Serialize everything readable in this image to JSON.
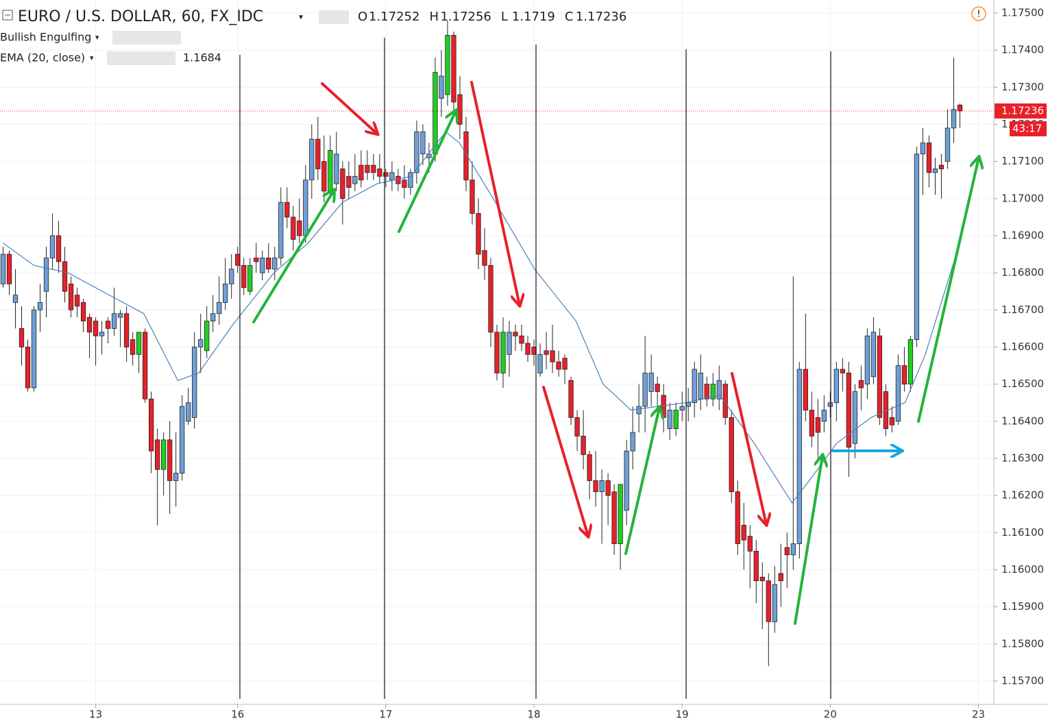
{
  "chart_data": {
    "type": "candlestick",
    "title": "EURO / U.S. DOLLAR, 60, FX_IDC",
    "ohlc": [
      {
        "label": "O",
        "value": 1.17252
      },
      {
        "label": "H",
        "value": 1.17256
      },
      {
        "label": "L",
        "value": 1.1719
      },
      {
        "label": "C",
        "value": 1.17236
      }
    ],
    "indicators": [
      {
        "name": "Bullish Engulfing"
      },
      {
        "name": "EMA (20, close)",
        "value": 1.1684
      }
    ],
    "countdown": "43:17",
    "up_color": "#6f9fd8",
    "down_color": "#e8202a",
    "pattern_color": "#1fd01f",
    "ema_color": "#4a80b8",
    "xlim": [
      -0.5,
      160.5
    ],
    "ylim": [
      1.15639,
      1.17535
    ],
    "xticks": [
      {
        "value": 15,
        "label": "13"
      },
      {
        "value": 38,
        "label": "16"
      },
      {
        "value": 62,
        "label": "17"
      },
      {
        "value": 86,
        "label": "18"
      },
      {
        "value": 110,
        "label": "19"
      },
      {
        "value": 134,
        "label": "20"
      },
      {
        "value": 158,
        "label": "23"
      }
    ],
    "yticks": [
      {
        "value": 1.175,
        "label": "1.17500"
      },
      {
        "value": 1.174,
        "label": "1.17400"
      },
      {
        "value": 1.173,
        "label": "1.17300"
      },
      {
        "value": 1.172,
        "label": "1.17200"
      },
      {
        "value": 1.171,
        "label": "1.17100"
      },
      {
        "value": 1.17,
        "label": "1.17000"
      },
      {
        "value": 1.169,
        "label": "1.16900"
      },
      {
        "value": 1.168,
        "label": "1.16800"
      },
      {
        "value": 1.167,
        "label": "1.16700"
      },
      {
        "value": 1.166,
        "label": "1.16600"
      },
      {
        "value": 1.165,
        "label": "1.16500"
      },
      {
        "value": 1.164,
        "label": "1.16400"
      },
      {
        "value": 1.163,
        "label": "1.16300"
      },
      {
        "value": 1.162,
        "label": "1.16200"
      },
      {
        "value": 1.161,
        "label": "1.16100"
      },
      {
        "value": 1.16,
        "label": "1.16000"
      },
      {
        "value": 1.159,
        "label": "1.15900"
      },
      {
        "value": 1.158,
        "label": "1.15800"
      },
      {
        "value": 1.157,
        "label": "1.15700"
      }
    ],
    "bullish_engulfing": [
      22,
      26,
      33,
      40,
      53,
      70,
      72,
      81,
      100,
      109,
      115,
      147
    ],
    "candles": [
      [
        1.1677,
        1.1687,
        1.1676,
        1.1685
      ],
      [
        1.1685,
        1.1686,
        1.1674,
        1.1677
      ],
      [
        1.1672,
        1.1681,
        1.1665,
        1.1674
      ],
      [
        1.1665,
        1.1671,
        1.1655,
        1.166
      ],
      [
        1.166,
        1.1662,
        1.1648,
        1.1649
      ],
      [
        1.1649,
        1.1671,
        1.1648,
        1.167
      ],
      [
        1.167,
        1.1677,
        1.1664,
        1.1672
      ],
      [
        1.1675,
        1.1687,
        1.1668,
        1.1684
      ],
      [
        1.1684,
        1.1696,
        1.1681,
        1.169
      ],
      [
        1.169,
        1.1694,
        1.168,
        1.1683
      ],
      [
        1.1683,
        1.1687,
        1.1672,
        1.1675
      ],
      [
        1.1677,
        1.1679,
        1.1668,
        1.167
      ],
      [
        1.1674,
        1.1676,
        1.1668,
        1.1671
      ],
      [
        1.1672,
        1.1673,
        1.1664,
        1.1667
      ],
      [
        1.1668,
        1.1669,
        1.1657,
        1.1664
      ],
      [
        1.1667,
        1.1668,
        1.1655,
        1.1663
      ],
      [
        1.1663,
        1.1667,
        1.1658,
        1.1664
      ],
      [
        1.1667,
        1.1668,
        1.1661,
        1.1665
      ],
      [
        1.1665,
        1.1676,
        1.1663,
        1.1669
      ],
      [
        1.1668,
        1.167,
        1.166,
        1.1669
      ],
      [
        1.1669,
        1.1671,
        1.1656,
        1.166
      ],
      [
        1.1662,
        1.1664,
        1.1655,
        1.1658
      ],
      [
        1.1658,
        1.1664,
        1.1653,
        1.1664
      ],
      [
        1.1664,
        1.1665,
        1.1645,
        1.1646
      ],
      [
        1.1646,
        1.1648,
        1.1626,
        1.1632
      ],
      [
        1.1635,
        1.1638,
        1.1612,
        1.1627
      ],
      [
        1.1627,
        1.1637,
        1.162,
        1.1635
      ],
      [
        1.1635,
        1.164,
        1.1615,
        1.1624
      ],
      [
        1.1624,
        1.1637,
        1.1617,
        1.1626
      ],
      [
        1.1626,
        1.1647,
        1.1624,
        1.1644
      ],
      [
        1.164,
        1.1649,
        1.1639,
        1.1645
      ],
      [
        1.1641,
        1.1664,
        1.1638,
        1.166
      ],
      [
        1.166,
        1.1669,
        1.1653,
        1.1662
      ],
      [
        1.1659,
        1.1671,
        1.1657,
        1.1667
      ],
      [
        1.1667,
        1.1674,
        1.1664,
        1.1669
      ],
      [
        1.1669,
        1.1679,
        1.1666,
        1.1672
      ],
      [
        1.1672,
        1.1684,
        1.167,
        1.1677
      ],
      [
        1.1677,
        1.1685,
        1.1673,
        1.1681
      ],
      [
        1.1685,
        1.1687,
        1.168,
        1.1682
      ],
      [
        1.1682,
        1.1684,
        1.1674,
        1.1676
      ],
      [
        1.1675,
        1.1684,
        1.1674,
        1.1682
      ],
      [
        1.1684,
        1.1688,
        1.168,
        1.1683
      ],
      [
        1.168,
        1.1686,
        1.1678,
        1.1684
      ],
      [
        1.1684,
        1.1688,
        1.168,
        1.1681
      ],
      [
        1.1681,
        1.1687,
        1.1678,
        1.1684
      ],
      [
        1.1684,
        1.1703,
        1.1682,
        1.1699
      ],
      [
        1.1699,
        1.1703,
        1.1692,
        1.1695
      ],
      [
        1.1695,
        1.1698,
        1.1686,
        1.1689
      ],
      [
        1.1694,
        1.17,
        1.1688,
        1.169
      ],
      [
        1.169,
        1.1709,
        1.1688,
        1.1705
      ],
      [
        1.1705,
        1.172,
        1.17,
        1.1716
      ],
      [
        1.1716,
        1.1722,
        1.1705,
        1.1708
      ],
      [
        1.171,
        1.1717,
        1.1699,
        1.1702
      ],
      [
        1.1702,
        1.1717,
        1.17,
        1.1713
      ],
      [
        1.1704,
        1.1718,
        1.1702,
        1.1712
      ],
      [
        1.1708,
        1.171,
        1.1693,
        1.17
      ],
      [
        1.1706,
        1.171,
        1.17,
        1.1703
      ],
      [
        1.1704,
        1.1712,
        1.1702,
        1.1706
      ],
      [
        1.1709,
        1.1713,
        1.1703,
        1.1705
      ],
      [
        1.1709,
        1.1713,
        1.1705,
        1.1707
      ],
      [
        1.1709,
        1.1712,
        1.1705,
        1.1707
      ],
      [
        1.1708,
        1.1712,
        1.1704,
        1.1706
      ],
      [
        1.1707,
        1.1708,
        1.1703,
        1.1706
      ],
      [
        1.1705,
        1.171,
        1.1702,
        1.1707
      ],
      [
        1.1706,
        1.1708,
        1.1702,
        1.1704
      ],
      [
        1.1705,
        1.1709,
        1.17,
        1.1703
      ],
      [
        1.1703,
        1.1708,
        1.1701,
        1.1707
      ],
      [
        1.1707,
        1.1721,
        1.1704,
        1.1718
      ],
      [
        1.1712,
        1.172,
        1.1709,
        1.1718
      ],
      [
        1.1711,
        1.1715,
        1.1707,
        1.1712
      ],
      [
        1.1712,
        1.1738,
        1.171,
        1.1734
      ],
      [
        1.1727,
        1.174,
        1.1722,
        1.1733
      ],
      [
        1.1728,
        1.1748,
        1.1725,
        1.1744
      ],
      [
        1.1744,
        1.1745,
        1.1722,
        1.1726
      ],
      [
        1.1728,
        1.1733,
        1.1716,
        1.172
      ],
      [
        1.1718,
        1.1722,
        1.1702,
        1.1705
      ],
      [
        1.1705,
        1.171,
        1.1693,
        1.1696
      ],
      [
        1.1696,
        1.17,
        1.1681,
        1.1685
      ],
      [
        1.1686,
        1.1692,
        1.1678,
        1.1682
      ],
      [
        1.1682,
        1.1684,
        1.166,
        1.1664
      ],
      [
        1.1664,
        1.1666,
        1.1651,
        1.1653
      ],
      [
        1.1653,
        1.1668,
        1.1649,
        1.1664
      ],
      [
        1.1658,
        1.1667,
        1.1652,
        1.1664
      ],
      [
        1.1664,
        1.1666,
        1.1659,
        1.1663
      ],
      [
        1.1663,
        1.1666,
        1.1659,
        1.1661
      ],
      [
        1.1661,
        1.1663,
        1.1656,
        1.1658
      ],
      [
        1.166,
        1.1662,
        1.1655,
        1.1658
      ],
      [
        1.1653,
        1.1661,
        1.1652,
        1.1658
      ],
      [
        1.1659,
        1.1664,
        1.1654,
        1.1658
      ],
      [
        1.1659,
        1.1666,
        1.1653,
        1.1656
      ],
      [
        1.1656,
        1.1659,
        1.1652,
        1.1654
      ],
      [
        1.1657,
        1.1658,
        1.165,
        1.1654
      ],
      [
        1.1651,
        1.1652,
        1.1639,
        1.1641
      ],
      [
        1.1641,
        1.1643,
        1.1632,
        1.1636
      ],
      [
        1.1636,
        1.1643,
        1.1627,
        1.1631
      ],
      [
        1.1631,
        1.1632,
        1.1619,
        1.1624
      ],
      [
        1.1624,
        1.1632,
        1.1617,
        1.1621
      ],
      [
        1.1621,
        1.1627,
        1.1607,
        1.1624
      ],
      [
        1.1624,
        1.1626,
        1.1612,
        1.162
      ],
      [
        1.1621,
        1.1623,
        1.1604,
        1.1607
      ],
      [
        1.1607,
        1.1623,
        1.16,
        1.1623
      ],
      [
        1.1616,
        1.1635,
        1.1612,
        1.1632
      ],
      [
        1.1632,
        1.1644,
        1.1627,
        1.1637
      ],
      [
        1.1642,
        1.165,
        1.1637,
        1.1644
      ],
      [
        1.1644,
        1.1663,
        1.1637,
        1.1653
      ],
      [
        1.1648,
        1.1658,
        1.1644,
        1.1653
      ],
      [
        1.165,
        1.1652,
        1.1642,
        1.1648
      ],
      [
        1.1647,
        1.165,
        1.1637,
        1.1641
      ],
      [
        1.1638,
        1.1645,
        1.1635,
        1.1643
      ],
      [
        1.1638,
        1.1645,
        1.1636,
        1.1643
      ],
      [
        1.1643,
        1.1648,
        1.164,
        1.1644
      ],
      [
        1.1644,
        1.1649,
        1.164,
        1.1645
      ],
      [
        1.1645,
        1.1656,
        1.1641,
        1.1654
      ],
      [
        1.1646,
        1.1658,
        1.1643,
        1.1653
      ],
      [
        1.165,
        1.1652,
        1.1644,
        1.1646
      ],
      [
        1.1646,
        1.1653,
        1.1644,
        1.165
      ],
      [
        1.1646,
        1.1655,
        1.1643,
        1.1651
      ],
      [
        1.165,
        1.1651,
        1.1639,
        1.1641
      ],
      [
        1.1641,
        1.1643,
        1.1618,
        1.1621
      ],
      [
        1.1621,
        1.1624,
        1.1604,
        1.1607
      ],
      [
        1.1612,
        1.1618,
        1.16,
        1.1608
      ],
      [
        1.1609,
        1.1612,
        1.1595,
        1.1605
      ],
      [
        1.1605,
        1.1608,
        1.1591,
        1.1597
      ],
      [
        1.1598,
        1.1602,
        1.1584,
        1.1597
      ],
      [
        1.1597,
        1.1599,
        1.1574,
        1.1586
      ],
      [
        1.1586,
        1.1601,
        1.1583,
        1.1596
      ],
      [
        1.1599,
        1.1607,
        1.159,
        1.1597
      ],
      [
        1.1606,
        1.161,
        1.1595,
        1.1604
      ],
      [
        1.1604,
        1.1679,
        1.16,
        1.1607
      ],
      [
        1.1607,
        1.1656,
        1.1603,
        1.1654
      ],
      [
        1.1654,
        1.1669,
        1.164,
        1.1643
      ],
      [
        1.1643,
        1.1648,
        1.1633,
        1.1636
      ],
      [
        1.1641,
        1.1646,
        1.163,
        1.1637
      ],
      [
        1.164,
        1.1647,
        1.1637,
        1.1643
      ],
      [
        1.1644,
        1.1648,
        1.1641,
        1.1645
      ],
      [
        1.1645,
        1.1656,
        1.164,
        1.1654
      ],
      [
        1.1654,
        1.1657,
        1.1648,
        1.1653
      ],
      [
        1.1653,
        1.1656,
        1.1625,
        1.1633
      ],
      [
        1.1634,
        1.165,
        1.163,
        1.1648
      ],
      [
        1.1651,
        1.1655,
        1.1643,
        1.1649
      ],
      [
        1.165,
        1.1665,
        1.1646,
        1.1663
      ],
      [
        1.1652,
        1.1668,
        1.165,
        1.1664
      ],
      [
        1.1663,
        1.1665,
        1.1639,
        1.1641
      ],
      [
        1.1648,
        1.165,
        1.1636,
        1.1638
      ],
      [
        1.1641,
        1.1644,
        1.1637,
        1.1639
      ],
      [
        1.164,
        1.1658,
        1.1639,
        1.1655
      ],
      [
        1.1655,
        1.166,
        1.1648,
        1.165
      ],
      [
        1.165,
        1.1663,
        1.1648,
        1.1662
      ],
      [
        1.1662,
        1.1714,
        1.166,
        1.1712
      ],
      [
        1.1712,
        1.1719,
        1.1701,
        1.1715
      ],
      [
        1.1715,
        1.1717,
        1.1703,
        1.1707
      ],
      [
        1.1707,
        1.1711,
        1.1701,
        1.1708
      ],
      [
        1.1709,
        1.1712,
        1.17,
        1.1708
      ],
      [
        1.171,
        1.1724,
        1.1708,
        1.1719
      ],
      [
        1.1719,
        1.1738,
        1.1715,
        1.1724
      ],
      [
        1.17252,
        1.17256,
        1.1719,
        1.17236
      ]
    ],
    "ema": {
      "x": [
        0,
        5,
        10.5,
        17.2,
        22.8,
        28.3,
        31.7,
        37.2,
        43.9,
        49.4,
        55,
        60.6,
        66.1,
        71.7,
        73.9,
        79.4,
        86.1,
        92.8,
        97.2,
        101.7,
        106.1,
        110.6,
        116.1,
        121.7,
        127.8,
        130.6,
        135,
        140.6,
        146.1,
        149.4,
        154.4
      ],
      "values": [
        1.1688,
        1.1682,
        1.168,
        1.1674,
        1.1669,
        1.1651,
        1.1653,
        1.1666,
        1.168,
        1.1688,
        1.1699,
        1.1704,
        1.1706,
        1.1718,
        1.1715,
        1.17,
        1.1681,
        1.1667,
        1.165,
        1.1643,
        1.1644,
        1.1645,
        1.1647,
        1.1634,
        1.1618,
        1.1624,
        1.1634,
        1.1641,
        1.1645,
        1.1658,
        1.1685
      ]
    }
  }
}
